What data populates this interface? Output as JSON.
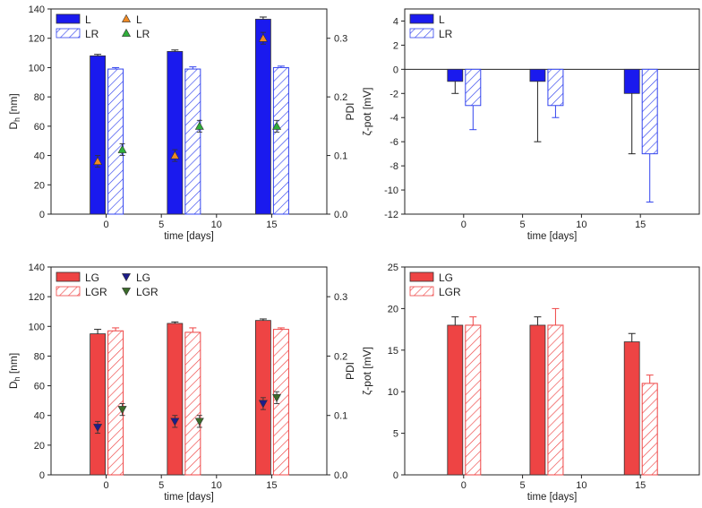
{
  "colors": {
    "L": "#1a1aee",
    "L_hatch": "#3344ee",
    "LG": "#ee4444",
    "LG_hatch": "#ee4444",
    "pdi_orange": "#f08a24",
    "pdi_green": "#2fae3a",
    "pdi_navy": "#1c1c8a",
    "pdi_darkgreen": "#3a6b2a"
  },
  "chart_data": [
    {
      "id": "tl",
      "type": "bar",
      "title": "",
      "xlabel": "time [days]",
      "ylabel": "D",
      "ylabel_sub": "h",
      "ylabel_unit": " [nm]",
      "y2label": "PDI",
      "xlim": [
        -5,
        20
      ],
      "xticks": [
        "0",
        "5",
        "10",
        "15"
      ],
      "xtick_values": [
        0,
        5,
        10,
        15
      ],
      "ylim": [
        0,
        140
      ],
      "yticks": [
        "0",
        "20",
        "40",
        "60",
        "80",
        "100",
        "120",
        "140"
      ],
      "y2lim": [
        0,
        0.35
      ],
      "y2ticks": [
        "0.0",
        "0.1",
        "0.2",
        "0.3"
      ],
      "series": [
        {
          "name": "L",
          "style": "solid",
          "x": [
            0,
            7,
            15
          ],
          "values": [
            108,
            111,
            133
          ],
          "errors": [
            1,
            1,
            1.5
          ]
        },
        {
          "name": "LR",
          "style": "hatch",
          "x": [
            0,
            7,
            15
          ],
          "values": [
            99,
            99,
            100
          ],
          "errors": [
            1,
            1.5,
            1
          ]
        }
      ],
      "markers": [
        {
          "name": "L",
          "shape": "up",
          "x": [
            0,
            7,
            15
          ],
          "values": [
            0.09,
            0.1,
            0.3
          ],
          "errors": [
            0.01,
            0.01,
            0.01
          ]
        },
        {
          "name": "LR",
          "shape": "up",
          "x": [
            1.5,
            8.5,
            15.5
          ],
          "values": [
            0.11,
            0.15,
            0.15
          ],
          "errors": [
            0.01,
            0.01,
            0.01
          ]
        }
      ],
      "legend": "top-left"
    },
    {
      "id": "tr",
      "type": "bar",
      "title": "",
      "xlabel": "time [days]",
      "ylabel": "ζ-pot [mV]",
      "xlim": [
        -5,
        20
      ],
      "xticks": [
        "0",
        "5",
        "10",
        "15"
      ],
      "xtick_values": [
        0,
        5,
        10,
        15
      ],
      "ylim": [
        -12,
        5
      ],
      "yticks": [
        "-12",
        "-10",
        "-8",
        "-6",
        "-4",
        "-2",
        "0",
        "2",
        "4"
      ],
      "series": [
        {
          "name": "L",
          "style": "solid",
          "x": [
            0,
            7,
            15
          ],
          "values": [
            -1,
            -1,
            -2
          ],
          "errors": [
            1,
            5,
            5
          ]
        },
        {
          "name": "LR",
          "style": "hatch",
          "x": [
            0,
            7,
            15
          ],
          "values": [
            -3,
            -3,
            -7
          ],
          "errors": [
            2,
            1,
            4
          ]
        }
      ],
      "legend": "top-left"
    },
    {
      "id": "bl",
      "type": "bar",
      "title": "",
      "xlabel": "time [days]",
      "ylabel": "D",
      "ylabel_sub": "h",
      "ylabel_unit": " [nm]",
      "y2label": "PDI",
      "xlim": [
        -5,
        20
      ],
      "xticks": [
        "0",
        "5",
        "10",
        "15"
      ],
      "xtick_values": [
        0,
        5,
        10,
        15
      ],
      "ylim": [
        0,
        140
      ],
      "yticks": [
        "0",
        "20",
        "40",
        "60",
        "80",
        "100",
        "120",
        "140"
      ],
      "y2lim": [
        0,
        0.35
      ],
      "y2ticks": [
        "0.0",
        "0.1",
        "0.2",
        "0.3"
      ],
      "series": [
        {
          "name": "LG",
          "style": "solid",
          "x": [
            0,
            7,
            15
          ],
          "values": [
            95,
            102,
            104
          ],
          "errors": [
            3,
            1,
            1
          ]
        },
        {
          "name": "LGR",
          "style": "hatch",
          "x": [
            0,
            7,
            15
          ],
          "values": [
            97,
            96,
            98
          ],
          "errors": [
            2,
            3,
            1
          ]
        }
      ],
      "markers": [
        {
          "name": "LG",
          "shape": "down",
          "x": [
            0,
            7,
            15
          ],
          "values": [
            0.08,
            0.09,
            0.12
          ],
          "errors": [
            0.01,
            0.01,
            0.01
          ]
        },
        {
          "name": "LGR",
          "shape": "down",
          "x": [
            1.5,
            8.5,
            15.5
          ],
          "values": [
            0.11,
            0.09,
            0.13
          ],
          "errors": [
            0.01,
            0.01,
            0.01
          ]
        }
      ],
      "legend": "top-left"
    },
    {
      "id": "br",
      "type": "bar",
      "title": "",
      "xlabel": "time [days]",
      "ylabel": "ζ-pot [mV]",
      "xlim": [
        -5,
        20
      ],
      "xticks": [
        "0",
        "5",
        "10",
        "15"
      ],
      "xtick_values": [
        0,
        5,
        10,
        15
      ],
      "ylim": [
        0,
        25
      ],
      "yticks": [
        "0",
        "5",
        "10",
        "15",
        "20",
        "25"
      ],
      "series": [
        {
          "name": "LG",
          "style": "solid",
          "x": [
            0,
            7,
            15
          ],
          "values": [
            18,
            18,
            16
          ],
          "errors": [
            1,
            1,
            1
          ]
        },
        {
          "name": "LGR",
          "style": "hatch",
          "x": [
            0,
            7,
            15
          ],
          "values": [
            18,
            18,
            11
          ],
          "errors": [
            1,
            2,
            1
          ]
        }
      ],
      "legend": "top-left"
    }
  ]
}
